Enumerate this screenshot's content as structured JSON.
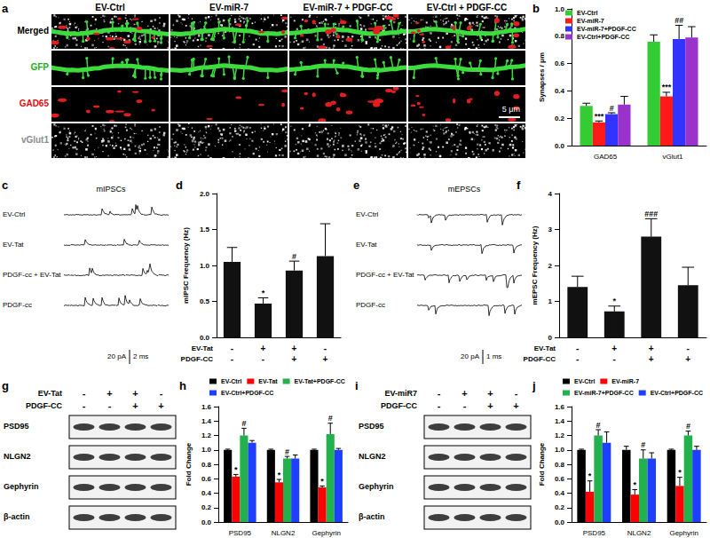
{
  "chart_data": [
    {
      "panel": "b",
      "type": "bar",
      "y_label": "Synapses / μm",
      "categories": [
        "GAD65",
        "vGlut1"
      ],
      "series": [
        {
          "name": "EV-Ctrl",
          "color": "#33cc33",
          "values": [
            0.29,
            0.76
          ],
          "errors": [
            0.02,
            0.05
          ],
          "annotations": [
            null,
            null
          ]
        },
        {
          "name": "EV-miR-7",
          "color": "#ff1a1a",
          "values": [
            0.17,
            0.36
          ],
          "errors": [
            0.01,
            0.03
          ],
          "annotations": [
            "***",
            "***"
          ]
        },
        {
          "name": "EV-miR-7+PDGF-CC",
          "color": "#3333ff",
          "values": [
            0.23,
            0.78
          ],
          "errors": [
            0.01,
            0.1
          ],
          "annotations": [
            "#",
            "##"
          ]
        },
        {
          "name": "EV-Ctrl+PDGF-CC",
          "color": "#9933cc",
          "values": [
            0.3,
            0.79
          ],
          "errors": [
            0.06,
            0.08
          ],
          "annotations": [
            null,
            null
          ]
        }
      ],
      "ylim": [
        0,
        1
      ],
      "yticks": [
        {
          "value": 0,
          "label": "0.0"
        },
        0.2,
        0.4,
        0.6,
        0.8,
        {
          "value": 1,
          "label": "1.0"
        }
      ],
      "grid": false,
      "legend": "upper left"
    },
    {
      "panel": "d",
      "type": "bar",
      "y_label": "mIPSC Frequency (Hz)",
      "categories": [
        null,
        null,
        null,
        null
      ],
      "values": [
        1.05,
        0.47,
        0.93,
        1.13
      ],
      "errors": [
        0.2,
        0.08,
        0.13,
        0.45
      ],
      "annotations": [
        null,
        "*",
        "#",
        null
      ],
      "color": "#111111",
      "conditions": [
        {
          "name": "EV-Tat",
          "values": [
            "-",
            "+",
            "+",
            "-"
          ]
        },
        {
          "name": "PDGF-CC",
          "values": [
            "-",
            "-",
            "+",
            "+"
          ]
        }
      ],
      "ylim": [
        0,
        2
      ],
      "yticks": [
        {
          "value": 0,
          "label": "0.0"
        },
        0.5,
        {
          "value": 1,
          "label": "1.0"
        },
        1.5,
        {
          "value": 2,
          "label": "2.0"
        }
      ],
      "grid": false
    },
    {
      "panel": "f",
      "type": "bar",
      "y_label": "mEPSC Frequency (Hz)",
      "categories": [
        null,
        null,
        null,
        null
      ],
      "values": [
        1.4,
        0.72,
        2.8,
        1.45
      ],
      "errors": [
        0.3,
        0.15,
        0.5,
        0.5
      ],
      "annotations": [
        null,
        "*",
        "###",
        null
      ],
      "color": "#111111",
      "conditions": [
        {
          "name": "EV-Tat",
          "values": [
            "-",
            "+",
            "+",
            "-"
          ]
        },
        {
          "name": "PDGF-CC",
          "values": [
            "-",
            "-",
            "+",
            "+"
          ]
        }
      ],
      "ylim": [
        0,
        4
      ],
      "yticks": [
        0,
        1,
        2,
        3,
        4
      ],
      "grid": false
    },
    {
      "panel": "h",
      "type": "bar",
      "y_label": "Fold Change",
      "categories": [
        "PSD95",
        "NLGN2",
        "Gephyrin"
      ],
      "series": [
        {
          "name": "EV-Ctrl",
          "color": "#000000",
          "values": [
            1.0,
            1.0,
            1.0
          ],
          "errors": [
            0.01,
            0.01,
            0.01
          ],
          "annotations": [
            null,
            null,
            null
          ]
        },
        {
          "name": "EV-Tat",
          "color": "#ff0000",
          "values": [
            0.63,
            0.55,
            0.48
          ],
          "errors": [
            0.03,
            0.04,
            0.02
          ],
          "annotations": [
            "*",
            "*",
            "*"
          ]
        },
        {
          "name": "EV-Tat+PDGF-CC",
          "color": "#22b14c",
          "values": [
            1.2,
            0.88,
            1.22
          ],
          "errors": [
            0.1,
            0.03,
            0.15
          ],
          "annotations": [
            "#",
            "#",
            "#"
          ]
        },
        {
          "name": "EV-Ctrl+PDGF-CC",
          "color": "#1f3fff",
          "values": [
            1.1,
            0.88,
            1.0
          ],
          "errors": [
            0.03,
            0.05,
            0.02
          ],
          "annotations": [
            null,
            null,
            null
          ]
        }
      ],
      "ylim": [
        0,
        1.6
      ],
      "yticks": [
        {
          "value": 0,
          "label": "0.0"
        },
        0.2,
        0.4,
        0.6,
        0.8,
        {
          "value": 1,
          "label": "1.0"
        },
        1.2,
        1.4,
        1.6
      ],
      "grid": false,
      "legend": "top"
    },
    {
      "panel": "j",
      "type": "bar",
      "y_label": "Fold Change",
      "categories": [
        "PSD95",
        "NLGN2",
        "Gephyrin"
      ],
      "series": [
        {
          "name": "EV-Ctrl",
          "color": "#000000",
          "values": [
            1.0,
            1.0,
            1.0
          ],
          "errors": [
            0.01,
            0.05,
            0.01
          ],
          "annotations": [
            null,
            null,
            null
          ]
        },
        {
          "name": "EV-miR-7",
          "color": "#ff0000",
          "values": [
            0.42,
            0.38,
            0.5
          ],
          "errors": [
            0.15,
            0.07,
            0.12
          ],
          "annotations": [
            "*",
            "*",
            "*"
          ]
        },
        {
          "name": "EV-miR-7+PDGF-CC",
          "color": "#22b14c",
          "values": [
            1.2,
            0.88,
            1.2
          ],
          "errors": [
            0.08,
            0.12,
            0.06
          ],
          "annotations": [
            "#",
            "#",
            "#"
          ]
        },
        {
          "name": "EV-Ctrl+PDGF-CC",
          "color": "#1f3fff",
          "values": [
            1.1,
            0.88,
            1.0
          ],
          "errors": [
            0.15,
            0.08,
            0.05
          ],
          "annotations": [
            null,
            null,
            null
          ]
        }
      ],
      "ylim": [
        0,
        1.6
      ],
      "yticks": [
        {
          "value": 0,
          "label": "0.0"
        },
        0.2,
        0.4,
        0.6,
        0.8,
        {
          "value": 1,
          "label": "1.0"
        },
        1.2,
        1.4,
        1.6
      ],
      "grid": false,
      "legend": "top"
    }
  ],
  "micrographs": {
    "panel": "a",
    "columns": [
      "EV-Ctrl",
      "EV-miR-7",
      "EV-miR-7 + PDGF-CC",
      "EV-Ctrl + PDGF-CC"
    ],
    "rows": [
      "Merged",
      "GFP",
      "GAD65",
      "vGlut1"
    ],
    "scale_bar": "5 μm"
  },
  "traces": [
    {
      "panel": "c",
      "title": "mIPSCs",
      "labels": [
        "EV-Ctrl",
        "EV-Tat",
        "PDGF-cc + EV-Tat",
        "PDGF-cc"
      ],
      "scale_bar": [
        "20 pA",
        "2 ms"
      ]
    },
    {
      "panel": "e",
      "title": "mEPSCs",
      "labels": [
        "EV-Ctrl",
        "EV-Tat",
        "PDGF-cc + EV-Tat",
        "PDGF-cc"
      ],
      "scale_bar": [
        "20 pA",
        "1 ms"
      ]
    }
  ],
  "blots": [
    {
      "panel": "g",
      "conditions": [
        {
          "name": "EV-Tat",
          "values": [
            "-",
            "+",
            "+",
            "-"
          ]
        },
        {
          "name": "PDGF-CC",
          "values": [
            "-",
            "-",
            "+",
            "+"
          ]
        }
      ],
      "proteins": [
        "PSD95",
        "NLGN2",
        "Gephyrin",
        "β-actin"
      ]
    },
    {
      "panel": "i",
      "conditions": [
        {
          "name": "EV-miR7",
          "values": [
            "-",
            "+",
            "+",
            "-"
          ]
        },
        {
          "name": "PDGF-CC",
          "values": [
            "-",
            "-",
            "+",
            "+"
          ]
        }
      ],
      "proteins": [
        "PSD95",
        "NLGN2",
        "Gephyrin",
        "β-actin"
      ]
    }
  ]
}
